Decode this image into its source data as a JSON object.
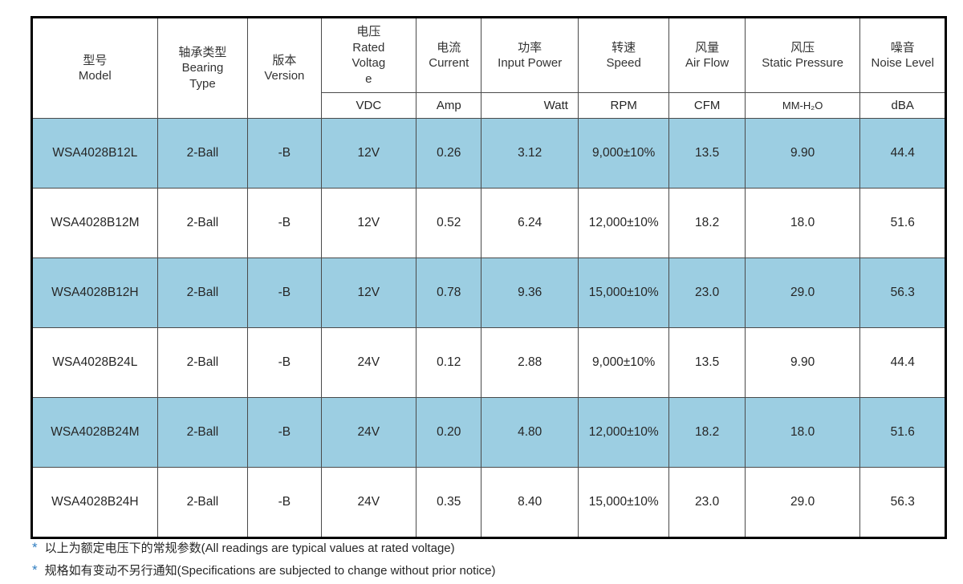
{
  "table": {
    "columns": [
      {
        "key": "model",
        "label": "型号\nModel",
        "unit": null
      },
      {
        "key": "bearing",
        "label": "轴承类型\nBearing\nType",
        "unit": null
      },
      {
        "key": "version",
        "label": "版本\nVersion",
        "unit": null
      },
      {
        "key": "voltage",
        "label": "电压\nRated\nVoltag\ne",
        "unit": "VDC"
      },
      {
        "key": "current",
        "label": "电流\nCurrent",
        "unit": "Amp"
      },
      {
        "key": "power",
        "label": "功率\nInput Power",
        "unit": "Watt"
      },
      {
        "key": "speed",
        "label": "转速\nSpeed",
        "unit": "RPM"
      },
      {
        "key": "airflow",
        "label": "风量\nAir Flow",
        "unit": "CFM"
      },
      {
        "key": "pressure",
        "label": "风压\nStatic Pressure",
        "unit": "MM-H₂O"
      },
      {
        "key": "noise",
        "label": "噪音\nNoise Level",
        "unit": "dBA"
      }
    ],
    "rows": [
      {
        "model": "WSA4028B12L",
        "bearing": "2-Ball",
        "version": "-B",
        "voltage": "12V",
        "current": "0.26",
        "power": "3.12",
        "speed": "9,000±10%",
        "airflow": "13.5",
        "pressure": "9.90",
        "noise": "44.4",
        "highlight": true
      },
      {
        "model": "WSA4028B12M",
        "bearing": "2-Ball",
        "version": "-B",
        "voltage": "12V",
        "current": "0.52",
        "power": "6.24",
        "speed": "12,000±10%",
        "airflow": "18.2",
        "pressure": "18.0",
        "noise": "51.6",
        "highlight": false
      },
      {
        "model": "WSA4028B12H",
        "bearing": "2-Ball",
        "version": "-B",
        "voltage": "12V",
        "current": "0.78",
        "power": "9.36",
        "speed": "15,000±10%",
        "airflow": "23.0",
        "pressure": "29.0",
        "noise": "56.3",
        "highlight": true
      },
      {
        "model": "WSA4028B24L",
        "bearing": "2-Ball",
        "version": "-B",
        "voltage": "24V",
        "current": "0.12",
        "power": "2.88",
        "speed": "9,000±10%",
        "airflow": "13.5",
        "pressure": "9.90",
        "noise": "44.4",
        "highlight": false
      },
      {
        "model": "WSA4028B24M",
        "bearing": "2-Ball",
        "version": "-B",
        "voltage": "24V",
        "current": "0.20",
        "power": "4.80",
        "speed": "12,000±10%",
        "airflow": "18.2",
        "pressure": "18.0",
        "noise": "51.6",
        "highlight": true
      },
      {
        "model": "WSA4028B24H",
        "bearing": "2-Ball",
        "version": "-B",
        "voltage": "24V",
        "current": "0.35",
        "power": "8.40",
        "speed": "15,000±10%",
        "airflow": "23.0",
        "pressure": "29.0",
        "noise": "56.3",
        "highlight": false
      }
    ]
  },
  "notes": [
    {
      "marker": "*",
      "text": "以上为额定电压下的常规参数(All readings are typical values at rated voltage)"
    },
    {
      "marker": "*",
      "text": "规格如有变动不另行通知(Specifications are subjected to change without prior notice)"
    }
  ],
  "colors": {
    "highlight_row": "#9ccee2",
    "note_marker": "#2f7dc0",
    "outer_border": "#000000",
    "inner_border": "#4a4a4a"
  }
}
